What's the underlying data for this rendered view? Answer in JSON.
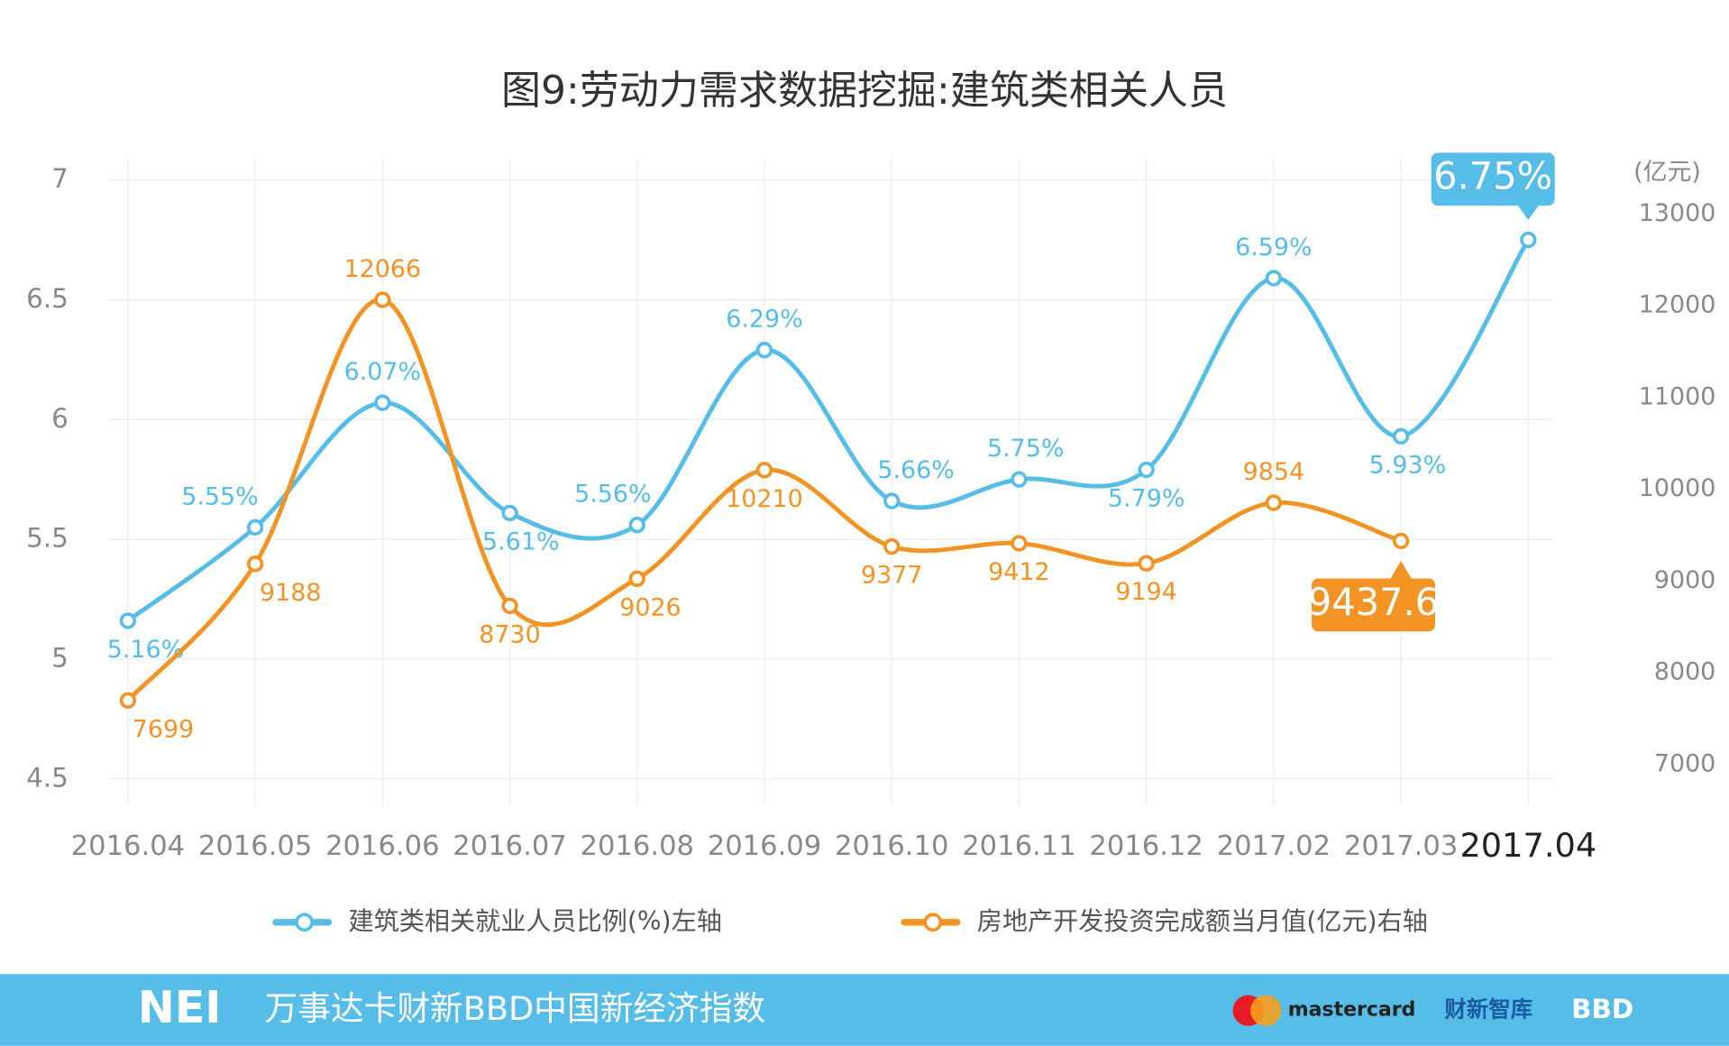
{
  "chart_data": {
    "type": "line",
    "title": "图9:劳动力需求数据挖掘:建筑类相关人员",
    "categories": [
      "2016.04",
      "2016.05",
      "2016.06",
      "2016.07",
      "2016.08",
      "2016.09",
      "2016.10",
      "2016.11",
      "2016.12",
      "2017.02",
      "2017.03",
      "2017.04"
    ],
    "series": [
      {
        "name": "建筑类相关就业人员比例(%)左轴",
        "color": "#55bde8",
        "axis": "y",
        "values": [
          5.16,
          5.55,
          6.07,
          5.61,
          5.56,
          6.29,
          5.66,
          5.75,
          5.79,
          6.59,
          5.93,
          6.75
        ],
        "value_labels": [
          "5.16%",
          "5.55%",
          "6.07%",
          "5.61%",
          "5.56%",
          "6.29%",
          "5.66%",
          "5.75%",
          "5.79%",
          "6.59%",
          "5.93%",
          "6.75%"
        ]
      },
      {
        "name": "房地产开发投资完成额当月值(亿元)右轴",
        "color": "#f39323",
        "axis": "y2",
        "values": [
          7699,
          9188,
          12066,
          8730,
          9026,
          10210,
          9377,
          9412,
          9194,
          9854,
          9437.6,
          null
        ]
      }
    ],
    "ylim": [
      4.5,
      7
    ],
    "yticks": [
      4.5,
      5,
      5.5,
      6,
      6.5,
      7
    ],
    "y2lim": [
      6844,
      13373
    ],
    "y2ticks": [
      7000,
      8000,
      9000,
      10000,
      11000,
      12000,
      13000
    ],
    "y2_label": "(亿元)",
    "grid": true
  },
  "footer": {
    "logo": "NEI",
    "title": "万事达卡财新BBD中国新经济指数",
    "partners": [
      "mastercard",
      "财新智库",
      "BBD"
    ]
  }
}
